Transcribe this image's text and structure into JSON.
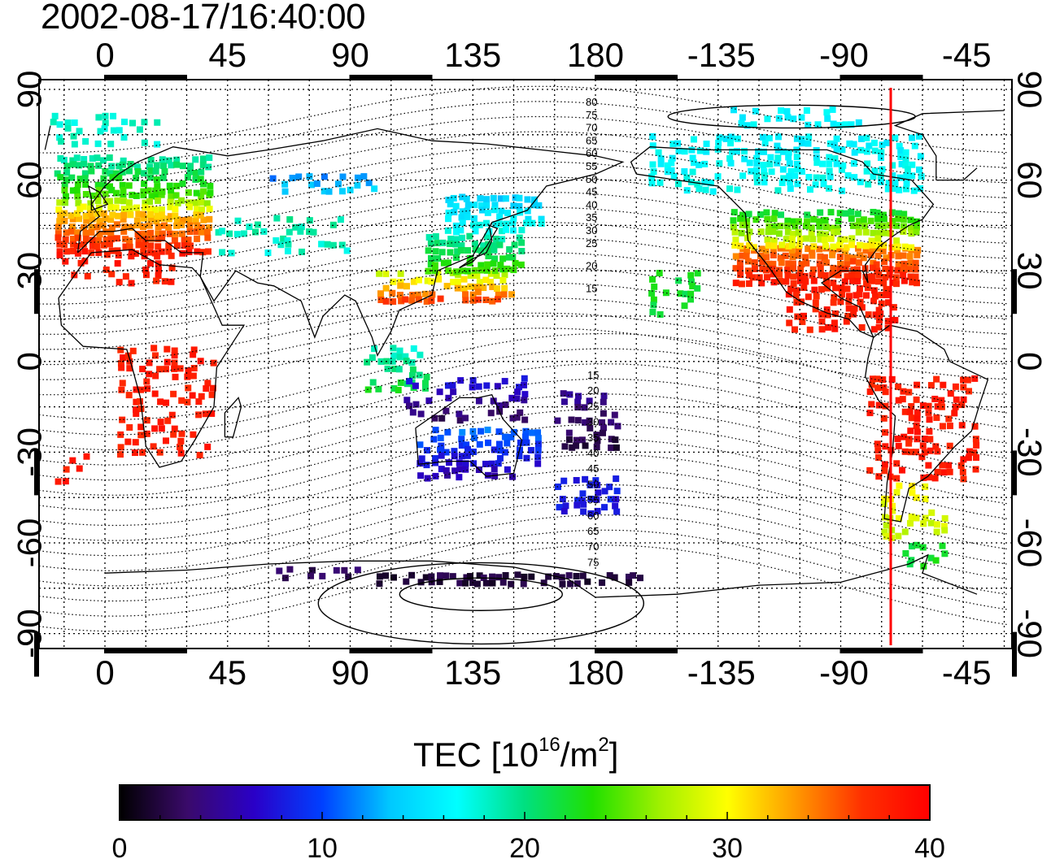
{
  "title": "2002-08-17/16:40:00",
  "colorbar": {
    "label_prefix": "TEC  [10",
    "label_exp1": "16",
    "label_mid": "/m",
    "label_exp2": "2",
    "label_suffix": "]",
    "min": 0,
    "max": 40,
    "ticks": [
      "0",
      "10",
      "20",
      "30",
      "40"
    ],
    "stops": [
      "#000000",
      "#3a0a6a",
      "#2a00c8",
      "#0040ff",
      "#00c8ff",
      "#00ffff",
      "#00e080",
      "#20e000",
      "#a0f000",
      "#ffff00",
      "#ff9a00",
      "#ff3000",
      "#ff0000"
    ]
  },
  "map": {
    "top_lon_labels": [
      "0",
      "45",
      "90",
      "135",
      "180",
      "-135",
      "-90",
      "-45"
    ],
    "bottom_lon_labels": [
      "0",
      "45",
      "90",
      "135",
      "180",
      "-135",
      "-90",
      "-45"
    ],
    "lat_labels": [
      "90",
      "60",
      "30",
      "0",
      "-30",
      "-60",
      "-90"
    ],
    "contour_labels": [
      "80",
      "75",
      "70",
      "65",
      "60",
      "55",
      "50",
      "45",
      "40",
      "35",
      "30",
      "25",
      "20",
      "15",
      "15",
      "20",
      "25",
      "30",
      "35",
      "40",
      "45",
      "50",
      "55",
      "60",
      "65",
      "70",
      "75"
    ],
    "marker_color": "#ff0000"
  }
}
